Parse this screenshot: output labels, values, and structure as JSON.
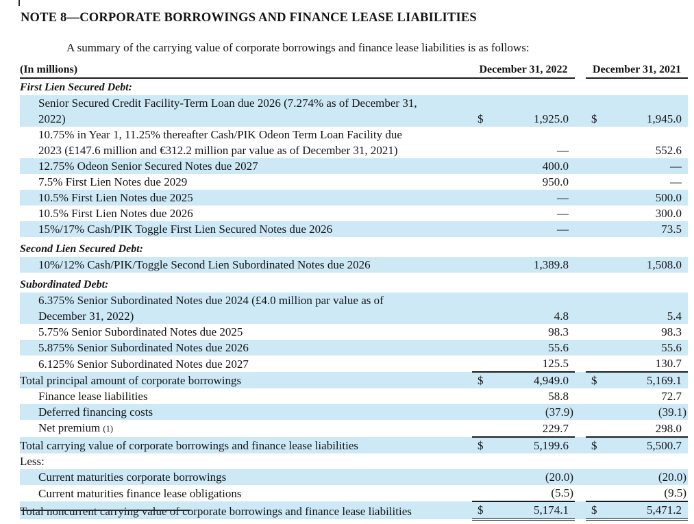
{
  "page": {
    "title": "NOTE 8—CORPORATE BORROWINGS AND FINANCE LEASE LIABILITIES",
    "intro": "A summary of the carrying value of corporate borrowings and finance lease liabilities is as follows:"
  },
  "colors": {
    "row_highlight": "#cde9f6",
    "text": "#141414",
    "rule": "#1a1a1a"
  },
  "table": {
    "unit_label": "(In millions)",
    "columns": [
      "December 31, 2022",
      "December 31, 2021"
    ],
    "rows": [
      {
        "kind": "section",
        "first": true,
        "label": "First Lien Secured Debt:"
      },
      {
        "kind": "item",
        "shade": true,
        "indent": true,
        "lines": [
          "Senior Secured Credit Facility-Term Loan due 2026 (7.274% as of December 31,",
          "2022)"
        ],
        "c1": "$",
        "v1": "1,925.0",
        "c2": "$",
        "v2": "1,945.0"
      },
      {
        "kind": "item",
        "shade": false,
        "indent": true,
        "lines": [
          "10.75% in Year 1, 11.25% thereafter Cash/PIK Odeon Term Loan Facility due",
          "2023 (£147.6 million and €312.2 million par value as of December 31, 2021)"
        ],
        "c1": "",
        "v1": "—",
        "c2": "",
        "v2": "552.6"
      },
      {
        "kind": "item",
        "shade": true,
        "indent": true,
        "lines": [
          "12.75% Odeon Senior Secured Notes due 2027"
        ],
        "c1": "",
        "v1": "400.0",
        "c2": "",
        "v2": "—"
      },
      {
        "kind": "item",
        "shade": false,
        "indent": true,
        "lines": [
          "7.5% First Lien Notes due 2029"
        ],
        "c1": "",
        "v1": "950.0",
        "c2": "",
        "v2": "—"
      },
      {
        "kind": "item",
        "shade": true,
        "indent": true,
        "lines": [
          "10.5% First Lien Notes due 2025"
        ],
        "c1": "",
        "v1": "—",
        "c2": "",
        "v2": "500.0"
      },
      {
        "kind": "item",
        "shade": false,
        "indent": true,
        "lines": [
          "10.5% First Lien Notes due 2026"
        ],
        "c1": "",
        "v1": "—",
        "c2": "",
        "v2": "300.0"
      },
      {
        "kind": "item",
        "shade": true,
        "indent": true,
        "lines": [
          "15%/17% Cash/PIK Toggle First Lien Secured Notes due 2026"
        ],
        "c1": "",
        "v1": "—",
        "c2": "",
        "v2": "73.5"
      },
      {
        "kind": "section",
        "gap_above": true,
        "label": "Second Lien Secured Debt:"
      },
      {
        "kind": "item",
        "shade": true,
        "indent": true,
        "lines": [
          "10%/12% Cash/PIK/Toggle Second Lien Subordinated Notes due 2026"
        ],
        "c1": "",
        "v1": "1,389.8",
        "c2": "",
        "v2": "1,508.0"
      },
      {
        "kind": "section",
        "gap_above": true,
        "label": "Subordinated Debt:"
      },
      {
        "kind": "item",
        "shade": true,
        "indent": true,
        "lines": [
          "6.375% Senior Subordinated Notes due 2024 (£4.0 million par value as of",
          "December 31, 2022)"
        ],
        "c1": "",
        "v1": "4.8",
        "c2": "",
        "v2": "5.4"
      },
      {
        "kind": "item",
        "shade": false,
        "indent": true,
        "lines": [
          "5.75% Senior Subordinated Notes due 2025"
        ],
        "c1": "",
        "v1": "98.3",
        "c2": "",
        "v2": "98.3"
      },
      {
        "kind": "item",
        "shade": true,
        "indent": true,
        "lines": [
          "5.875% Senior Subordinated Notes due 2026"
        ],
        "c1": "",
        "v1": "55.6",
        "c2": "",
        "v2": "55.6"
      },
      {
        "kind": "item",
        "shade": false,
        "indent": true,
        "rule_b": true,
        "lines": [
          "6.125% Senior Subordinated Notes due 2027"
        ],
        "c1": "",
        "v1": "125.5",
        "c2": "",
        "v2": "130.7"
      },
      {
        "kind": "item",
        "shade": true,
        "indent": false,
        "lines": [
          "Total principal amount of corporate borrowings"
        ],
        "c1": "$",
        "v1": "4,949.0",
        "c2": "$",
        "v2": "5,169.1"
      },
      {
        "kind": "item",
        "shade": false,
        "indent": true,
        "lines": [
          "Finance lease liabilities"
        ],
        "c1": "",
        "v1": "58.8",
        "c2": "",
        "v2": "72.7"
      },
      {
        "kind": "item",
        "shade": true,
        "indent": true,
        "lines": [
          "Deferred financing costs"
        ],
        "c1": "",
        "v1": "(37.9)",
        "c2": "",
        "v2": "(39.1)"
      },
      {
        "kind": "item",
        "shade": false,
        "indent": true,
        "rule_b": true,
        "lines": [
          "Net premium"
        ],
        "suffix": "(1)",
        "c1": "",
        "v1": "229.7",
        "c2": "",
        "v2": "298.0"
      },
      {
        "kind": "item",
        "shade": true,
        "indent": false,
        "lines": [
          "Total carrying value of corporate borrowings and finance lease liabilities"
        ],
        "c1": "$",
        "v1": "5,199.6",
        "c2": "$",
        "v2": "5,500.7"
      },
      {
        "kind": "plain",
        "label": "Less:"
      },
      {
        "kind": "item",
        "shade": true,
        "indent": true,
        "lines": [
          "Current maturities corporate borrowings"
        ],
        "c1": "",
        "v1": "(20.0)",
        "c2": "",
        "v2": "(20.0)"
      },
      {
        "kind": "item",
        "shade": false,
        "indent": true,
        "rule_b": true,
        "lines": [
          "Current maturities finance lease obligations"
        ],
        "c1": "",
        "v1": "(5.5)",
        "c2": "",
        "v2": "(9.5)"
      },
      {
        "kind": "item",
        "shade": true,
        "indent": false,
        "dbl_b": true,
        "lines": [
          "Total noncurrent carrying value of corporate borrowings and finance lease liabilities"
        ],
        "c1": "$",
        "v1": "5,174.1",
        "c2": "$",
        "v2": "5,471.2"
      }
    ]
  }
}
